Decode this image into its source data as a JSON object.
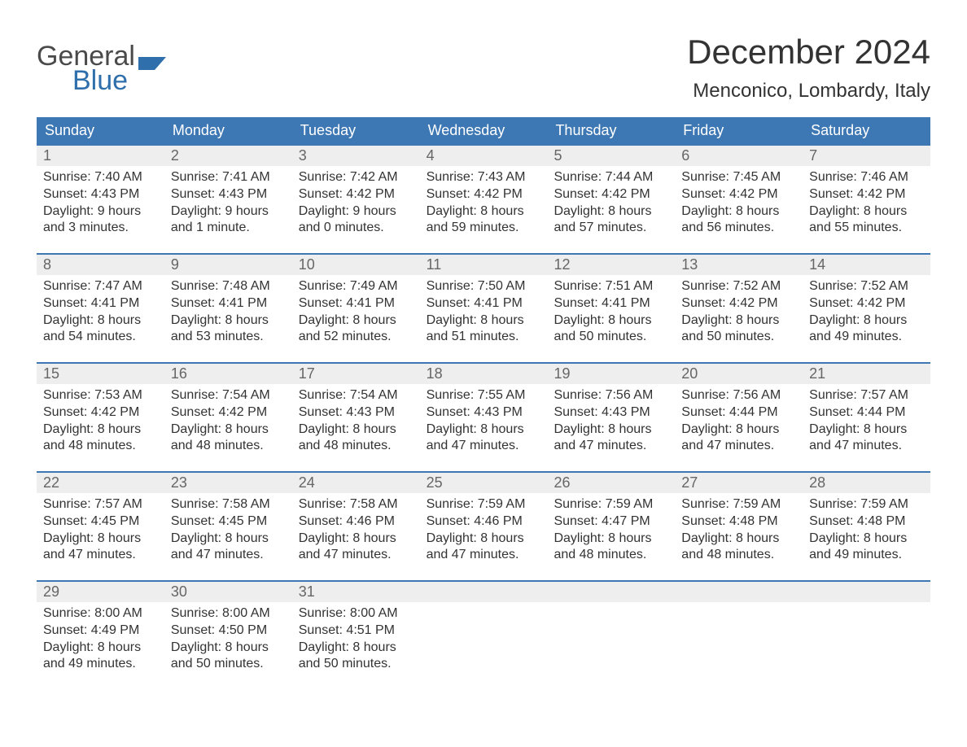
{
  "logo": {
    "text1": "General",
    "text2": "Blue",
    "mark_color": "#2f6fab"
  },
  "title": "December 2024",
  "subtitle": "Menconico, Lombardy, Italy",
  "colors": {
    "header_bg": "#3d78b4",
    "header_text": "#ffffff",
    "daynum_bg": "#eeeeee",
    "daynum_text": "#666666",
    "body_text": "#333333",
    "week_border": "#3d78b4",
    "background": "#ffffff"
  },
  "day_headers": [
    "Sunday",
    "Monday",
    "Tuesday",
    "Wednesday",
    "Thursday",
    "Friday",
    "Saturday"
  ],
  "weeks": [
    [
      {
        "n": "1",
        "sunrise": "Sunrise: 7:40 AM",
        "sunset": "Sunset: 4:43 PM",
        "d1": "Daylight: 9 hours",
        "d2": "and 3 minutes."
      },
      {
        "n": "2",
        "sunrise": "Sunrise: 7:41 AM",
        "sunset": "Sunset: 4:43 PM",
        "d1": "Daylight: 9 hours",
        "d2": "and 1 minute."
      },
      {
        "n": "3",
        "sunrise": "Sunrise: 7:42 AM",
        "sunset": "Sunset: 4:42 PM",
        "d1": "Daylight: 9 hours",
        "d2": "and 0 minutes."
      },
      {
        "n": "4",
        "sunrise": "Sunrise: 7:43 AM",
        "sunset": "Sunset: 4:42 PM",
        "d1": "Daylight: 8 hours",
        "d2": "and 59 minutes."
      },
      {
        "n": "5",
        "sunrise": "Sunrise: 7:44 AM",
        "sunset": "Sunset: 4:42 PM",
        "d1": "Daylight: 8 hours",
        "d2": "and 57 minutes."
      },
      {
        "n": "6",
        "sunrise": "Sunrise: 7:45 AM",
        "sunset": "Sunset: 4:42 PM",
        "d1": "Daylight: 8 hours",
        "d2": "and 56 minutes."
      },
      {
        "n": "7",
        "sunrise": "Sunrise: 7:46 AM",
        "sunset": "Sunset: 4:42 PM",
        "d1": "Daylight: 8 hours",
        "d2": "and 55 minutes."
      }
    ],
    [
      {
        "n": "8",
        "sunrise": "Sunrise: 7:47 AM",
        "sunset": "Sunset: 4:41 PM",
        "d1": "Daylight: 8 hours",
        "d2": "and 54 minutes."
      },
      {
        "n": "9",
        "sunrise": "Sunrise: 7:48 AM",
        "sunset": "Sunset: 4:41 PM",
        "d1": "Daylight: 8 hours",
        "d2": "and 53 minutes."
      },
      {
        "n": "10",
        "sunrise": "Sunrise: 7:49 AM",
        "sunset": "Sunset: 4:41 PM",
        "d1": "Daylight: 8 hours",
        "d2": "and 52 minutes."
      },
      {
        "n": "11",
        "sunrise": "Sunrise: 7:50 AM",
        "sunset": "Sunset: 4:41 PM",
        "d1": "Daylight: 8 hours",
        "d2": "and 51 minutes."
      },
      {
        "n": "12",
        "sunrise": "Sunrise: 7:51 AM",
        "sunset": "Sunset: 4:41 PM",
        "d1": "Daylight: 8 hours",
        "d2": "and 50 minutes."
      },
      {
        "n": "13",
        "sunrise": "Sunrise: 7:52 AM",
        "sunset": "Sunset: 4:42 PM",
        "d1": "Daylight: 8 hours",
        "d2": "and 50 minutes."
      },
      {
        "n": "14",
        "sunrise": "Sunrise: 7:52 AM",
        "sunset": "Sunset: 4:42 PM",
        "d1": "Daylight: 8 hours",
        "d2": "and 49 minutes."
      }
    ],
    [
      {
        "n": "15",
        "sunrise": "Sunrise: 7:53 AM",
        "sunset": "Sunset: 4:42 PM",
        "d1": "Daylight: 8 hours",
        "d2": "and 48 minutes."
      },
      {
        "n": "16",
        "sunrise": "Sunrise: 7:54 AM",
        "sunset": "Sunset: 4:42 PM",
        "d1": "Daylight: 8 hours",
        "d2": "and 48 minutes."
      },
      {
        "n": "17",
        "sunrise": "Sunrise: 7:54 AM",
        "sunset": "Sunset: 4:43 PM",
        "d1": "Daylight: 8 hours",
        "d2": "and 48 minutes."
      },
      {
        "n": "18",
        "sunrise": "Sunrise: 7:55 AM",
        "sunset": "Sunset: 4:43 PM",
        "d1": "Daylight: 8 hours",
        "d2": "and 47 minutes."
      },
      {
        "n": "19",
        "sunrise": "Sunrise: 7:56 AM",
        "sunset": "Sunset: 4:43 PM",
        "d1": "Daylight: 8 hours",
        "d2": "and 47 minutes."
      },
      {
        "n": "20",
        "sunrise": "Sunrise: 7:56 AM",
        "sunset": "Sunset: 4:44 PM",
        "d1": "Daylight: 8 hours",
        "d2": "and 47 minutes."
      },
      {
        "n": "21",
        "sunrise": "Sunrise: 7:57 AM",
        "sunset": "Sunset: 4:44 PM",
        "d1": "Daylight: 8 hours",
        "d2": "and 47 minutes."
      }
    ],
    [
      {
        "n": "22",
        "sunrise": "Sunrise: 7:57 AM",
        "sunset": "Sunset: 4:45 PM",
        "d1": "Daylight: 8 hours",
        "d2": "and 47 minutes."
      },
      {
        "n": "23",
        "sunrise": "Sunrise: 7:58 AM",
        "sunset": "Sunset: 4:45 PM",
        "d1": "Daylight: 8 hours",
        "d2": "and 47 minutes."
      },
      {
        "n": "24",
        "sunrise": "Sunrise: 7:58 AM",
        "sunset": "Sunset: 4:46 PM",
        "d1": "Daylight: 8 hours",
        "d2": "and 47 minutes."
      },
      {
        "n": "25",
        "sunrise": "Sunrise: 7:59 AM",
        "sunset": "Sunset: 4:46 PM",
        "d1": "Daylight: 8 hours",
        "d2": "and 47 minutes."
      },
      {
        "n": "26",
        "sunrise": "Sunrise: 7:59 AM",
        "sunset": "Sunset: 4:47 PM",
        "d1": "Daylight: 8 hours",
        "d2": "and 48 minutes."
      },
      {
        "n": "27",
        "sunrise": "Sunrise: 7:59 AM",
        "sunset": "Sunset: 4:48 PM",
        "d1": "Daylight: 8 hours",
        "d2": "and 48 minutes."
      },
      {
        "n": "28",
        "sunrise": "Sunrise: 7:59 AM",
        "sunset": "Sunset: 4:48 PM",
        "d1": "Daylight: 8 hours",
        "d2": "and 49 minutes."
      }
    ],
    [
      {
        "n": "29",
        "sunrise": "Sunrise: 8:00 AM",
        "sunset": "Sunset: 4:49 PM",
        "d1": "Daylight: 8 hours",
        "d2": "and 49 minutes."
      },
      {
        "n": "30",
        "sunrise": "Sunrise: 8:00 AM",
        "sunset": "Sunset: 4:50 PM",
        "d1": "Daylight: 8 hours",
        "d2": "and 50 minutes."
      },
      {
        "n": "31",
        "sunrise": "Sunrise: 8:00 AM",
        "sunset": "Sunset: 4:51 PM",
        "d1": "Daylight: 8 hours",
        "d2": "and 50 minutes."
      },
      null,
      null,
      null,
      null
    ]
  ]
}
